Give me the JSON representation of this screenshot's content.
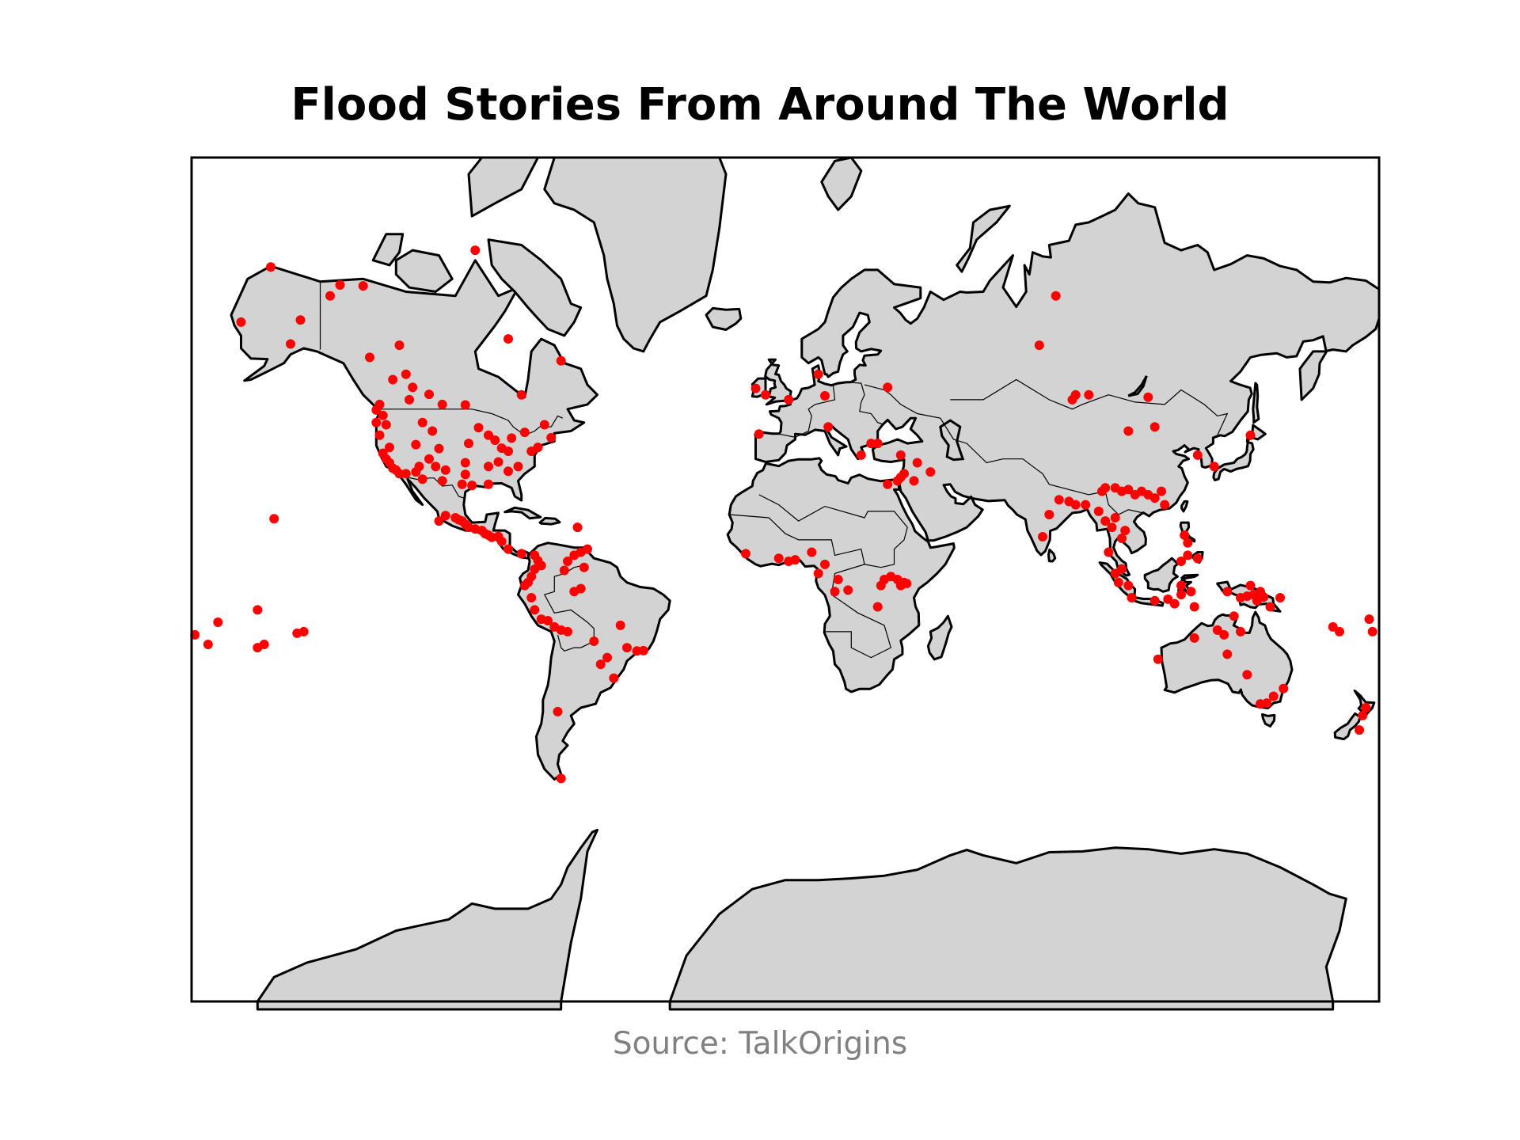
{
  "title": "Flood Stories From Around The World",
  "source": "Source: TalkOrigins",
  "colors": {
    "land": "#d3d3d3",
    "coast": "#000000",
    "marker": "#ff0000",
    "source_text": "#808080"
  },
  "projection": "mercator",
  "extent": {
    "lon": [
      -180,
      180
    ],
    "lat": [
      -80,
      80
    ]
  },
  "points": [
    [
      -165,
      64.5
    ],
    [
      -150,
      61.2
    ],
    [
      -147,
      64.8
    ],
    [
      -156,
      71.3
    ],
    [
      -138,
      68
    ],
    [
      -135,
      69.3
    ],
    [
      -128,
      69.2
    ],
    [
      -126,
      59
    ],
    [
      -117,
      61
    ],
    [
      -119,
      55
    ],
    [
      -123,
      50
    ],
    [
      -124,
      48.8
    ],
    [
      -122,
      47.6
    ],
    [
      -124,
      46
    ],
    [
      -121,
      45.5
    ],
    [
      -123,
      43
    ],
    [
      -120,
      40
    ],
    [
      -122,
      38.5
    ],
    [
      -121,
      37
    ],
    [
      -120,
      36
    ],
    [
      -119,
      34.5
    ],
    [
      -118,
      34
    ],
    [
      -117,
      33
    ],
    [
      -115,
      33
    ],
    [
      -112,
      40.7
    ],
    [
      -110,
      46
    ],
    [
      -107,
      44
    ],
    [
      -105,
      39.7
    ],
    [
      -108,
      37
    ],
    [
      -106,
      35
    ],
    [
      -111,
      35
    ],
    [
      -112,
      33.5
    ],
    [
      -110,
      31.5
    ],
    [
      -104,
      31
    ],
    [
      -103,
      34
    ],
    [
      -97,
      32.8
    ],
    [
      -98,
      30
    ],
    [
      -95,
      29.7
    ],
    [
      -97,
      36
    ],
    [
      -96,
      41
    ],
    [
      -93,
      44.8
    ],
    [
      -90,
      43
    ],
    [
      -88,
      41.8
    ],
    [
      -86,
      39.8
    ],
    [
      -84,
      39
    ],
    [
      -87,
      36.2
    ],
    [
      -90,
      35
    ],
    [
      -90,
      30
    ],
    [
      -84,
      33.7
    ],
    [
      -81,
      35
    ],
    [
      -77,
      39
    ],
    [
      -75,
      40
    ],
    [
      -71,
      42.4
    ],
    [
      -73,
      45.5
    ],
    [
      -79,
      43.7
    ],
    [
      -83,
      42.3
    ],
    [
      -80,
      52
    ],
    [
      -68,
      58.4
    ],
    [
      -84,
      62
    ],
    [
      -94,
      73
    ],
    [
      -104,
      50
    ],
    [
      -97,
      49.9
    ],
    [
      -108,
      52.1
    ],
    [
      -114,
      51
    ],
    [
      -113,
      53.5
    ],
    [
      -115,
      56
    ],
    [
      -105,
      19
    ],
    [
      -103,
      20.7
    ],
    [
      -100,
      20
    ],
    [
      -99,
      19.4
    ],
    [
      -98,
      19
    ],
    [
      -97,
      18
    ],
    [
      -96,
      17
    ],
    [
      -94,
      16.5
    ],
    [
      -92,
      16
    ],
    [
      -91,
      15
    ],
    [
      -90,
      14.5
    ],
    [
      -89,
      13.8
    ],
    [
      -87,
      14.1
    ],
    [
      -86,
      12.5
    ],
    [
      -84,
      10
    ],
    [
      -80,
      8.5
    ],
    [
      -76,
      8
    ],
    [
      -75,
      6.2
    ],
    [
      -74,
      4.6
    ],
    [
      -76,
      3.4
    ],
    [
      -77,
      1
    ],
    [
      -78,
      -1
    ],
    [
      -79,
      -2
    ],
    [
      -77,
      -6
    ],
    [
      -76,
      -10
    ],
    [
      -74,
      -13
    ],
    [
      -72,
      -13.5
    ],
    [
      -70,
      -15.5
    ],
    [
      -68,
      -16.5
    ],
    [
      -66,
      -17
    ],
    [
      -64,
      -4
    ],
    [
      -62,
      -3
    ],
    [
      -67,
      3
    ],
    [
      -66,
      6
    ],
    [
      -64,
      8
    ],
    [
      -62,
      9
    ],
    [
      -60,
      10
    ],
    [
      -61,
      4
    ],
    [
      -58,
      -20
    ],
    [
      -56,
      -27
    ],
    [
      -54,
      -25
    ],
    [
      -52,
      -31
    ],
    [
      -48,
      -22
    ],
    [
      -43,
      -22.9
    ],
    [
      -45,
      -23
    ],
    [
      -50,
      -15
    ],
    [
      -69,
      -40
    ],
    [
      -68,
      -54.8
    ],
    [
      -63,
      17
    ],
    [
      -155,
      19.7
    ],
    [
      -172,
      -14
    ],
    [
      -160,
      -10
    ],
    [
      -148,
      -17.5
    ],
    [
      -146,
      -17
    ],
    [
      -158,
      -21
    ],
    [
      -9,
      53.3
    ],
    [
      -6,
      52
    ],
    [
      -8,
      43.3
    ],
    [
      1,
      51
    ],
    [
      10,
      56
    ],
    [
      12,
      51.8
    ],
    [
      13,
      45
    ],
    [
      23,
      38
    ],
    [
      26,
      41
    ],
    [
      28,
      41
    ],
    [
      35,
      38
    ],
    [
      35,
      32
    ],
    [
      34,
      31
    ],
    [
      36,
      33
    ],
    [
      39,
      31
    ],
    [
      44,
      33.5
    ],
    [
      40,
      36
    ],
    [
      31,
      30
    ],
    [
      31,
      53.5
    ],
    [
      8,
      9
    ],
    [
      3,
      6.5
    ],
    [
      -12,
      8.5
    ],
    [
      -2,
      7
    ],
    [
      1,
      6
    ],
    [
      12,
      5
    ],
    [
      10,
      2
    ],
    [
      15,
      -4
    ],
    [
      16,
      0
    ],
    [
      19,
      -3.5
    ],
    [
      29,
      -2
    ],
    [
      30,
      0
    ],
    [
      32,
      1
    ],
    [
      34,
      0
    ],
    [
      35,
      -2
    ],
    [
      36,
      -1
    ],
    [
      28,
      -9
    ],
    [
      36.8,
      -1.3
    ],
    [
      77,
      61
    ],
    [
      82,
      68
    ],
    [
      87,
      51
    ],
    [
      88,
      52
    ],
    [
      92,
      52
    ],
    [
      110,
      51.5
    ],
    [
      112,
      45
    ],
    [
      104,
      44
    ],
    [
      96,
      28
    ],
    [
      97,
      29
    ],
    [
      100,
      29
    ],
    [
      102,
      28
    ],
    [
      104,
      28.5
    ],
    [
      106,
      27
    ],
    [
      108,
      28
    ],
    [
      110,
      27
    ],
    [
      112,
      26
    ],
    [
      115,
      24
    ],
    [
      114,
      28
    ],
    [
      125,
      38
    ],
    [
      130,
      35
    ],
    [
      88,
      24
    ],
    [
      91,
      24
    ],
    [
      86,
      25
    ],
    [
      83,
      25.5
    ],
    [
      80,
      21
    ],
    [
      78,
      14
    ],
    [
      95,
      22
    ],
    [
      97,
      19
    ],
    [
      99,
      17
    ],
    [
      102,
      13.5
    ],
    [
      103,
      16
    ],
    [
      100,
      20
    ],
    [
      98,
      9
    ],
    [
      100,
      2
    ],
    [
      102,
      3.5
    ],
    [
      101,
      -1
    ],
    [
      104,
      -2
    ],
    [
      105,
      -6
    ],
    [
      112,
      -7
    ],
    [
      116,
      -6.5
    ],
    [
      118,
      -8
    ],
    [
      120,
      -5
    ],
    [
      121,
      14.5
    ],
    [
      122,
      12
    ],
    [
      122,
      8
    ],
    [
      125,
      7
    ],
    [
      120,
      6
    ],
    [
      120,
      -2
    ],
    [
      123,
      -4
    ],
    [
      124,
      -9
    ],
    [
      134,
      -4
    ],
    [
      138,
      -6
    ],
    [
      140,
      -5.5
    ],
    [
      142,
      -5
    ],
    [
      144,
      -4
    ],
    [
      143,
      -7
    ],
    [
      147,
      -9
    ],
    [
      150,
      -6
    ],
    [
      141,
      -2
    ],
    [
      145,
      -5.8
    ],
    [
      113,
      -25.5
    ],
    [
      124,
      -19
    ],
    [
      134,
      -24
    ],
    [
      133,
      -18
    ],
    [
      138,
      -17
    ],
    [
      131,
      -16.5
    ],
    [
      136,
      -12
    ],
    [
      146,
      -37.8
    ],
    [
      151,
      -33.9
    ],
    [
      148,
      -36
    ],
    [
      144,
      -38
    ],
    [
      140,
      -30
    ],
    [
      141,
      43
    ],
    [
      175,
      -41
    ],
    [
      176,
      -39
    ],
    [
      174,
      -44.5
    ],
    [
      178,
      -17
    ],
    [
      166,
      -15.5
    ],
    [
      168,
      -17
    ],
    [
      -179,
      -18
    ],
    [
      -175,
      -21
    ],
    [
      177,
      -13
    ],
    [
      -160,
      -22
    ]
  ]
}
